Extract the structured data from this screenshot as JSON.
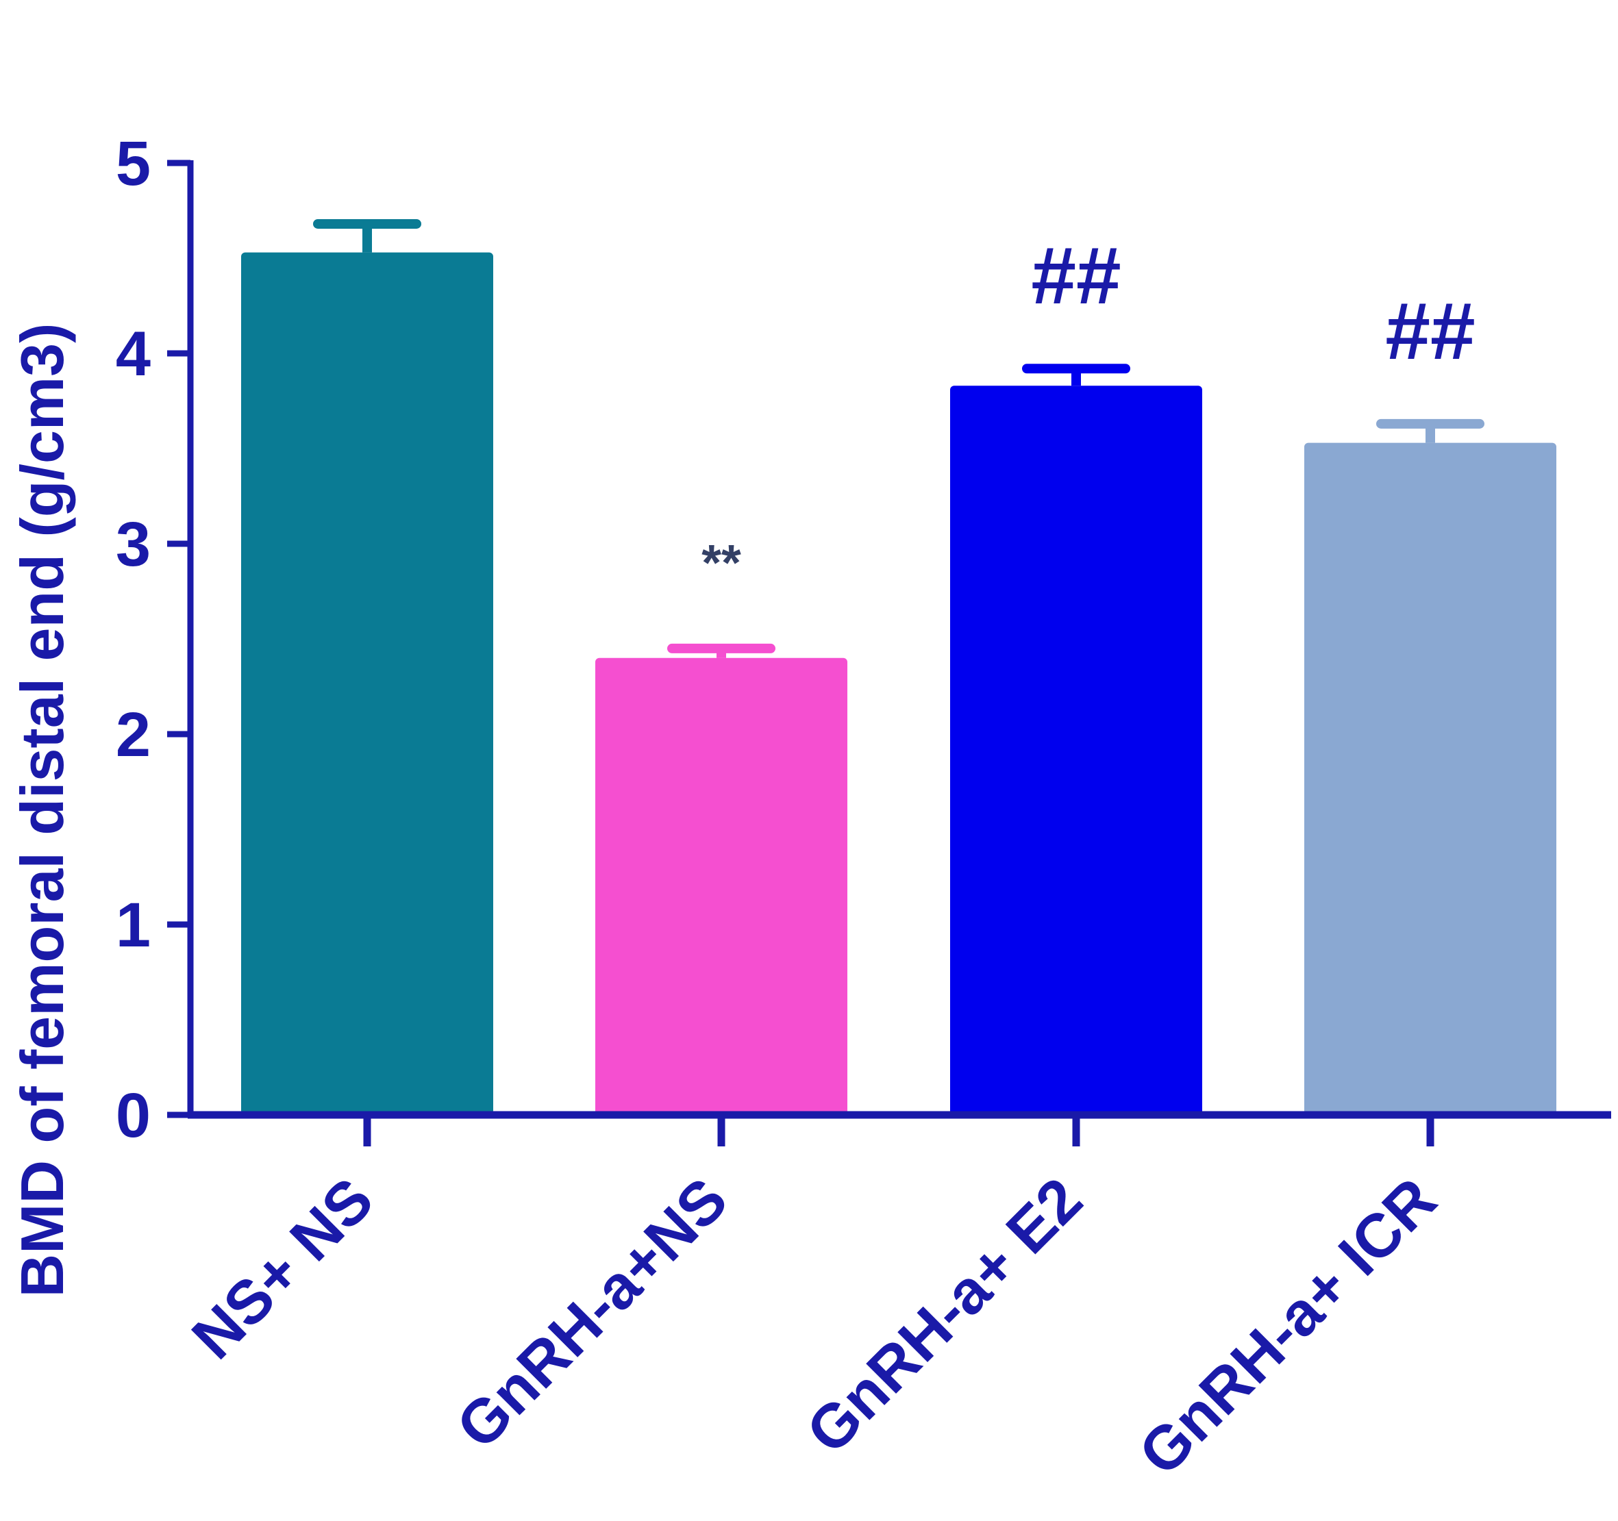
{
  "chart_data": {
    "type": "bar",
    "title": "",
    "xlabel": "",
    "ylabel": "BMD of femoral  distal end (g/cm3)",
    "ylim": [
      0,
      5
    ],
    "yticks": [
      "0",
      "1",
      "2",
      "3",
      "4",
      "5"
    ],
    "categories": [
      "NS+ NS",
      "GnRH-a+NS",
      "GnRH-a+ E2",
      "GnRH-a+ ICR"
    ],
    "values": [
      4.53,
      2.4,
      3.83,
      3.53
    ],
    "errors": [
      0.15,
      0.05,
      0.09,
      0.1
    ],
    "annotations": [
      "",
      "**",
      "##",
      "##"
    ],
    "bar_colors": [
      "#0a7b94",
      "#f54fd0",
      "#0000ee",
      "#8aa8d2"
    ],
    "axis_color": "#1a1aa8",
    "text_color": "#1a1aa8",
    "grid": false,
    "legend": "none"
  }
}
